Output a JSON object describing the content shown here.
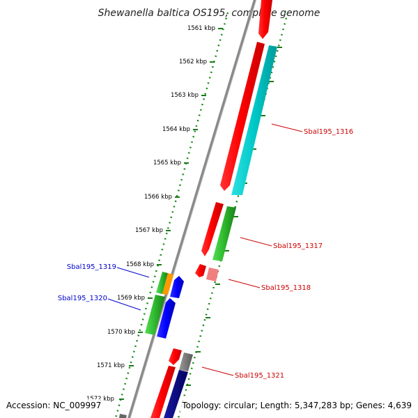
{
  "title": "Shewanella baltica OS195, complete genome",
  "footer": {
    "accession": "Accession: NC_009997",
    "topology": "Topology: circular; Length: 5,347,283 bp; Genes: 4,639"
  },
  "ticks": [
    "1561 kbp",
    "1562 kbp",
    "1563 kbp",
    "1564 kbp",
    "1565 kbp",
    "1566 kbp",
    "1567 kbp",
    "1568 kbp",
    "1569 kbp",
    "1570 kbp",
    "1571 kbp",
    "1572 kbp"
  ],
  "gene_labels": [
    {
      "id": "gene-label-sbal195-1316",
      "text": "Sbal195_1316",
      "color": "#cc0000"
    },
    {
      "id": "gene-label-sbal195-1317",
      "text": "Sbal195_1317",
      "color": "#cc0000"
    },
    {
      "id": "gene-label-sbal195-1318",
      "text": "Sbal195_1318",
      "color": "#cc0000"
    },
    {
      "id": "gene-label-sbal195-1319",
      "text": "Sbal195_1319",
      "color": "#0000cc"
    },
    {
      "id": "gene-label-sbal195-1320",
      "text": "Sbal195_1320",
      "color": "#0000cc"
    },
    {
      "id": "gene-label-sbal195-1321",
      "text": "Sbal195_1321",
      "color": "#cc0000"
    }
  ],
  "colors": {
    "backbone": "#7a7a7a",
    "tick_green": "#1a7a1a",
    "gene_red": "#ff0000",
    "gene_cyan": "#00c8c8",
    "gene_green": "#2db82d",
    "gene_blue": "#0000ff",
    "gene_orange": "#ff9900",
    "gene_pink": "#f08080",
    "gene_gray": "#777777",
    "gene_navy": "#000080"
  }
}
